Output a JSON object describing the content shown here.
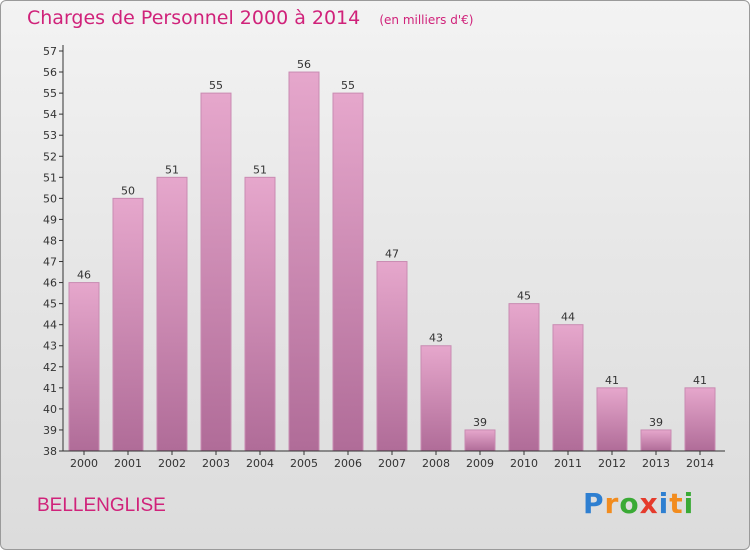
{
  "title": "Charges de Personnel 2000 à 2014",
  "subtitle": "(en milliers d'€)",
  "commune": "BELLENGLISE",
  "logo": {
    "text": "Proxiti",
    "letters": [
      {
        "char": "P",
        "color": "#2e7fd1"
      },
      {
        "char": "r",
        "color": "#f28c1e"
      },
      {
        "char": "o",
        "color": "#3aaa35"
      },
      {
        "char": "x",
        "color": "#e53b2c"
      },
      {
        "char": "i",
        "color": "#2e7fd1"
      },
      {
        "char": "t",
        "color": "#f28c1e"
      },
      {
        "char": "i",
        "color": "#3aaa35"
      }
    ]
  },
  "colors": {
    "title": "#d0227a",
    "bar_top": "#e6a7cc",
    "bar_bottom": "#b06c98",
    "bar_stroke": "#c98bb2",
    "axis": "#333333"
  },
  "chart_data": {
    "type": "bar",
    "categories": [
      "2000",
      "2001",
      "2002",
      "2003",
      "2004",
      "2005",
      "2006",
      "2007",
      "2008",
      "2009",
      "2010",
      "2011",
      "2012",
      "2013",
      "2014"
    ],
    "values": [
      46,
      50,
      51,
      55,
      51,
      56,
      55,
      47,
      43,
      39,
      45,
      44,
      41,
      39,
      41
    ],
    "ylim": [
      38,
      57
    ],
    "yticks": [
      38,
      39,
      40,
      41,
      42,
      43,
      44,
      45,
      46,
      47,
      48,
      49,
      50,
      51,
      52,
      53,
      54,
      55,
      56,
      57
    ],
    "grid": false,
    "legend": "none",
    "data_labels": true
  }
}
